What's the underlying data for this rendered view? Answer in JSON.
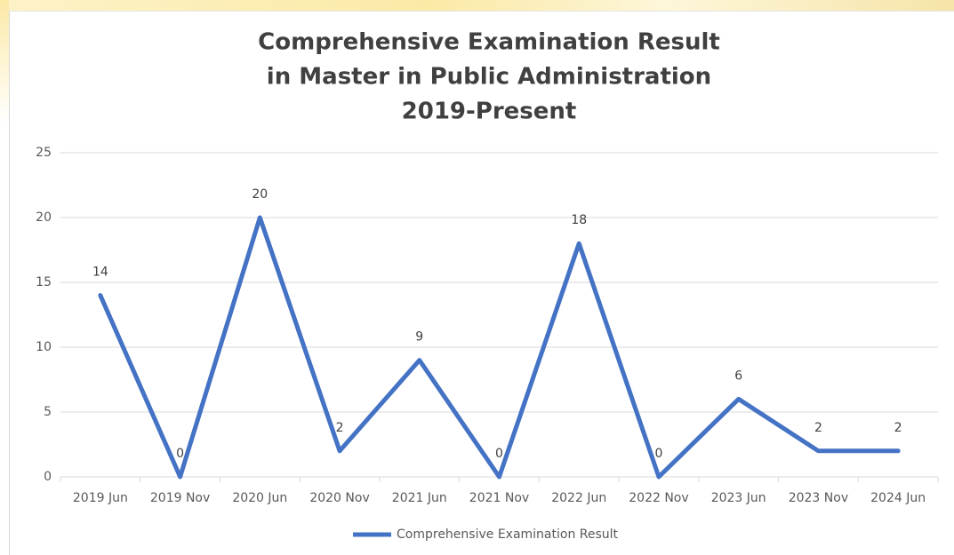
{
  "chart_data": {
    "type": "line",
    "title": [
      "Comprehensive Examination Result",
      "in Master in Public Administration",
      "2019-Present"
    ],
    "categories": [
      "2019 Jun",
      "2019 Nov",
      "2020 Jun",
      "2020 Nov",
      "2021 Jun",
      "2021 Nov",
      "2022 Jun",
      "2022 Nov",
      "2023 Jun",
      "2023 Nov",
      "2024 Jun"
    ],
    "series": [
      {
        "name": "Comprehensive Examination Result",
        "color": "#4472c4",
        "values": [
          14,
          0,
          20,
          2,
          9,
          0,
          18,
          0,
          6,
          2,
          2
        ]
      }
    ],
    "ylim": [
      0,
      25
    ],
    "yticks": [
      0,
      5,
      10,
      15,
      20,
      25
    ],
    "grid": true,
    "legend": "bottom"
  }
}
